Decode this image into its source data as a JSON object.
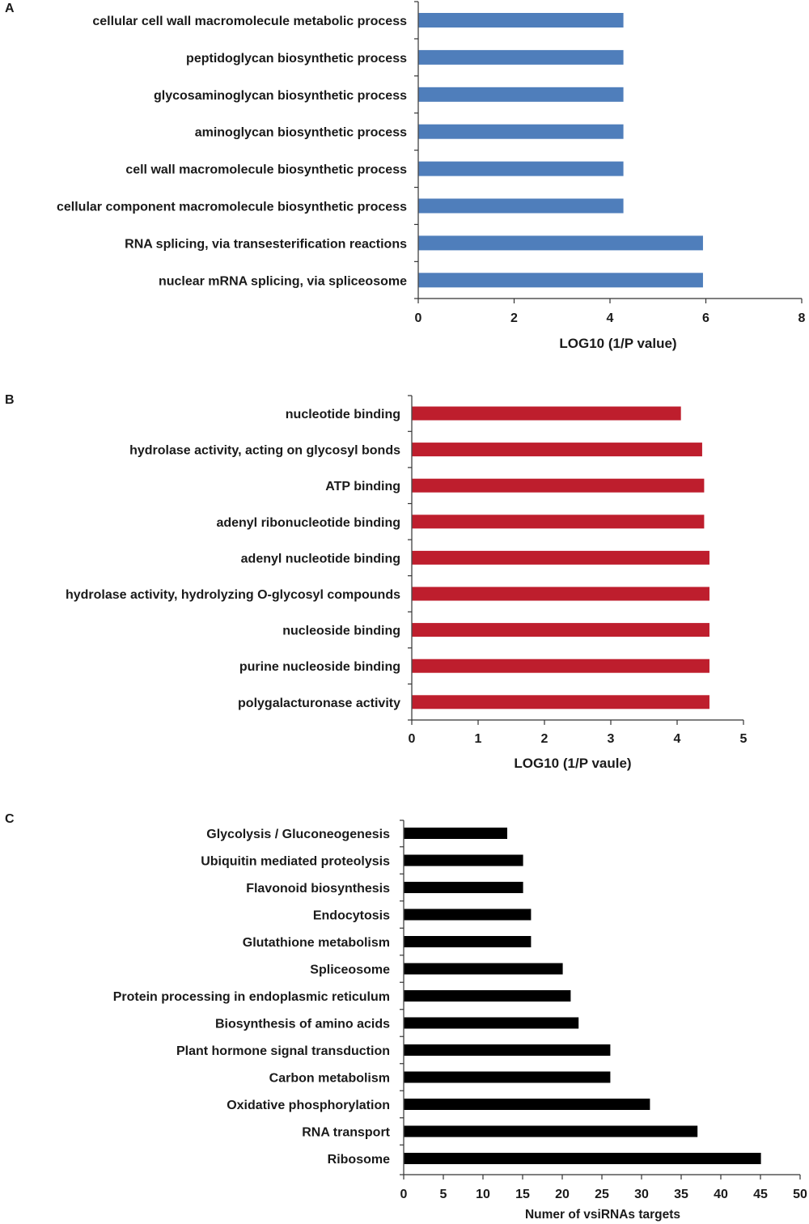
{
  "colors": {
    "panel_a_bar": "#4F7EBB",
    "panel_b_bar": "#BE1E2D",
    "panel_c_bar": "#000000",
    "axis": "#333333",
    "text": "#1a1a1a"
  },
  "chart_data": [
    {
      "panel": "A",
      "type": "bar",
      "orientation": "horizontal",
      "title": "",
      "categories": [
        "cellular cell wall macromolecule metabolic process",
        "peptidoglycan biosynthetic process",
        "glycosaminoglycan biosynthetic process",
        "aminoglycan biosynthetic process",
        "cell wall macromolecule biosynthetic process",
        "cellular component macromolecule biosynthetic process",
        "RNA splicing, via transesterification reactions",
        "nuclear mRNA splicing, via spliceosome"
      ],
      "values": [
        4.27,
        4.27,
        4.27,
        4.27,
        4.27,
        4.27,
        5.93,
        5.93
      ],
      "xlabel": "LOG10 (1/P value)",
      "ylabel": "",
      "xlim": [
        0,
        8
      ],
      "xticks": [
        0,
        2,
        4,
        6,
        8
      ],
      "grid": false
    },
    {
      "panel": "B",
      "type": "bar",
      "orientation": "horizontal",
      "title": "",
      "categories": [
        "nucleotide binding",
        "hydrolase activity, acting on glycosyl bonds",
        "ATP binding",
        "adenyl ribonucleotide binding",
        "adenyl nucleotide binding",
        "hydrolase activity, hydrolyzing O-glycosyl compounds",
        "nucleoside binding",
        "purine nucleoside binding",
        "polygalacturonase activity"
      ],
      "values": [
        4.05,
        4.37,
        4.4,
        4.4,
        4.48,
        4.48,
        4.48,
        4.48,
        4.48
      ],
      "xlabel": "LOG10 (1/P vaule)",
      "ylabel": "",
      "xlim": [
        0,
        5
      ],
      "xticks": [
        0,
        1,
        2,
        3,
        4,
        5
      ],
      "grid": false
    },
    {
      "panel": "C",
      "type": "bar",
      "orientation": "horizontal",
      "title": "",
      "categories": [
        "Glycolysis / Gluconeogenesis",
        "Ubiquitin mediated proteolysis",
        "Flavonoid biosynthesis",
        "Endocytosis",
        "Glutathione metabolism",
        "Spliceosome",
        "Protein processing in endoplasmic reticulum",
        "Biosynthesis of amino acids",
        "Plant hormone signal transduction",
        "Carbon metabolism",
        "Oxidative phosphorylation",
        "RNA transport",
        "Ribosome"
      ],
      "values": [
        13,
        15,
        15,
        16,
        16,
        20,
        21,
        22,
        26,
        26,
        31,
        37,
        45
      ],
      "xlabel": "Numer of vsiRNAs targets",
      "ylabel": "",
      "xlim": [
        0,
        50
      ],
      "xticks": [
        0,
        5,
        10,
        15,
        20,
        25,
        30,
        35,
        40,
        45,
        50
      ],
      "grid": false
    }
  ]
}
